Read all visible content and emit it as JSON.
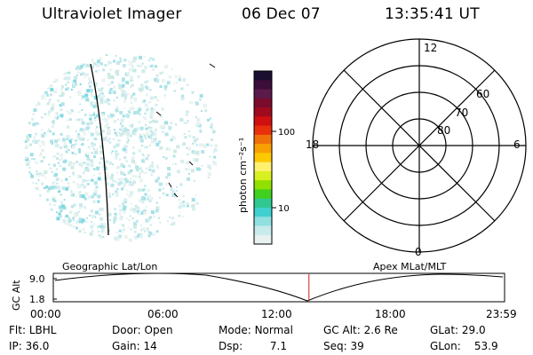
{
  "header": {
    "instrument": "Ultraviolet Imager",
    "date": "06 Dec 07",
    "time": "13:35:41 UT"
  },
  "colorbar": {
    "unit_label": "photon cm⁻²s⁻¹",
    "ticks": [
      {
        "label": "100",
        "value": 100
      },
      {
        "label": "10",
        "value": 10
      }
    ],
    "colors": [
      "#1a0f2e",
      "#3a0d3a",
      "#5a1a4a",
      "#7a0b2c",
      "#a00a1e",
      "#d01010",
      "#e8300a",
      "#f0700a",
      "#f8a000",
      "#fcc800",
      "#fff070",
      "#d8f020",
      "#90e000",
      "#40d020",
      "#30c890",
      "#40d0d0",
      "#90e0e0",
      "#c8eaea",
      "#e8f0f0"
    ]
  },
  "polar_plot": {
    "clock_labels": {
      "top": "12",
      "left": "18",
      "right": "6",
      "bottom": "0"
    },
    "lat_labels": [
      "60",
      "70",
      "80"
    ]
  },
  "timeline": {
    "ylabel": "GC Alt",
    "y_ticks": [
      "9.0",
      "1.8"
    ],
    "left_title": "Geographic Lat/Lon",
    "right_title": "Apex MLat/MLT",
    "x_ticks": [
      "00:00",
      "06:00",
      "12:00",
      "18:00",
      "23:59"
    ],
    "current_time_fraction": 0.5665
  },
  "status": {
    "filter": {
      "label": "Flt:",
      "value": "LBHL"
    },
    "ip": {
      "label": "IP:",
      "value": "36.0"
    },
    "door": {
      "label": "Door:",
      "value": "Open"
    },
    "gain": {
      "label": "Gain:",
      "value": "14"
    },
    "mode": {
      "label": "Mode:",
      "value": "Normal"
    },
    "dsp": {
      "label": "Dsp:",
      "value": "7.1"
    },
    "gc_alt": {
      "label": "GC Alt:",
      "value": "2.6 Re"
    },
    "seq": {
      "label": "Seq:",
      "value": "39"
    },
    "glat": {
      "label": "GLat:",
      "value": "29.0"
    },
    "glon": {
      "label": "GLon:",
      "value": "53.9"
    }
  }
}
